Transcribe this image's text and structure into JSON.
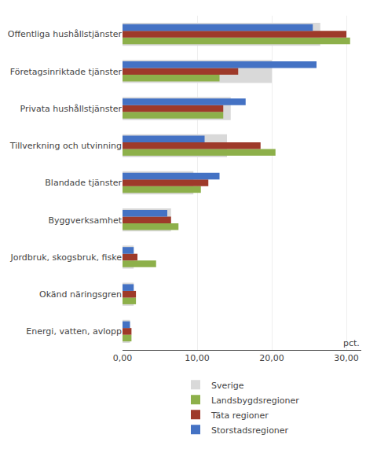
{
  "chart_data": {
    "type": "bar",
    "orientation": "horizontal",
    "categories": [
      "Offentliga hushållstjänster",
      "Företagsinriktade tjänster",
      "Privata hushållstjänster",
      "Tillverkning och utvinning",
      "Blandade tjänster",
      "Byggverksamhet",
      "Jordbruk, skogsbruk, fiske",
      "Okänd näringsgren",
      "Energi, vatten, avlopp"
    ],
    "series": [
      {
        "name": "Sverige",
        "color": "#d9d9d9",
        "values": [
          26.5,
          20.0,
          14.5,
          14.0,
          9.5,
          6.5,
          1.5,
          1.5,
          1.0
        ]
      },
      {
        "name": "Landsbygdsregioner",
        "color": "#8db04a",
        "values": [
          30.5,
          13.0,
          13.5,
          20.5,
          10.5,
          7.5,
          4.5,
          1.8,
          1.2
        ]
      },
      {
        "name": "Täta regioner",
        "color": "#9e3a2a",
        "values": [
          30.0,
          15.5,
          13.5,
          18.5,
          11.5,
          6.5,
          2.0,
          1.8,
          1.2
        ]
      },
      {
        "name": "Storstadsregioner",
        "color": "#4472c4",
        "values": [
          25.5,
          26.0,
          16.5,
          11.0,
          13.0,
          6.0,
          1.5,
          1.5,
          1.0
        ]
      }
    ],
    "xlim": [
      0,
      32
    ],
    "xticks": [
      {
        "value": 0,
        "label": "0,00"
      },
      {
        "value": 10,
        "label": "10,00"
      },
      {
        "value": 20,
        "label": "20,00"
      },
      {
        "value": 30,
        "label": "30,00"
      }
    ],
    "annotations": [
      "pct."
    ],
    "grid": true,
    "legend": "bottom"
  }
}
